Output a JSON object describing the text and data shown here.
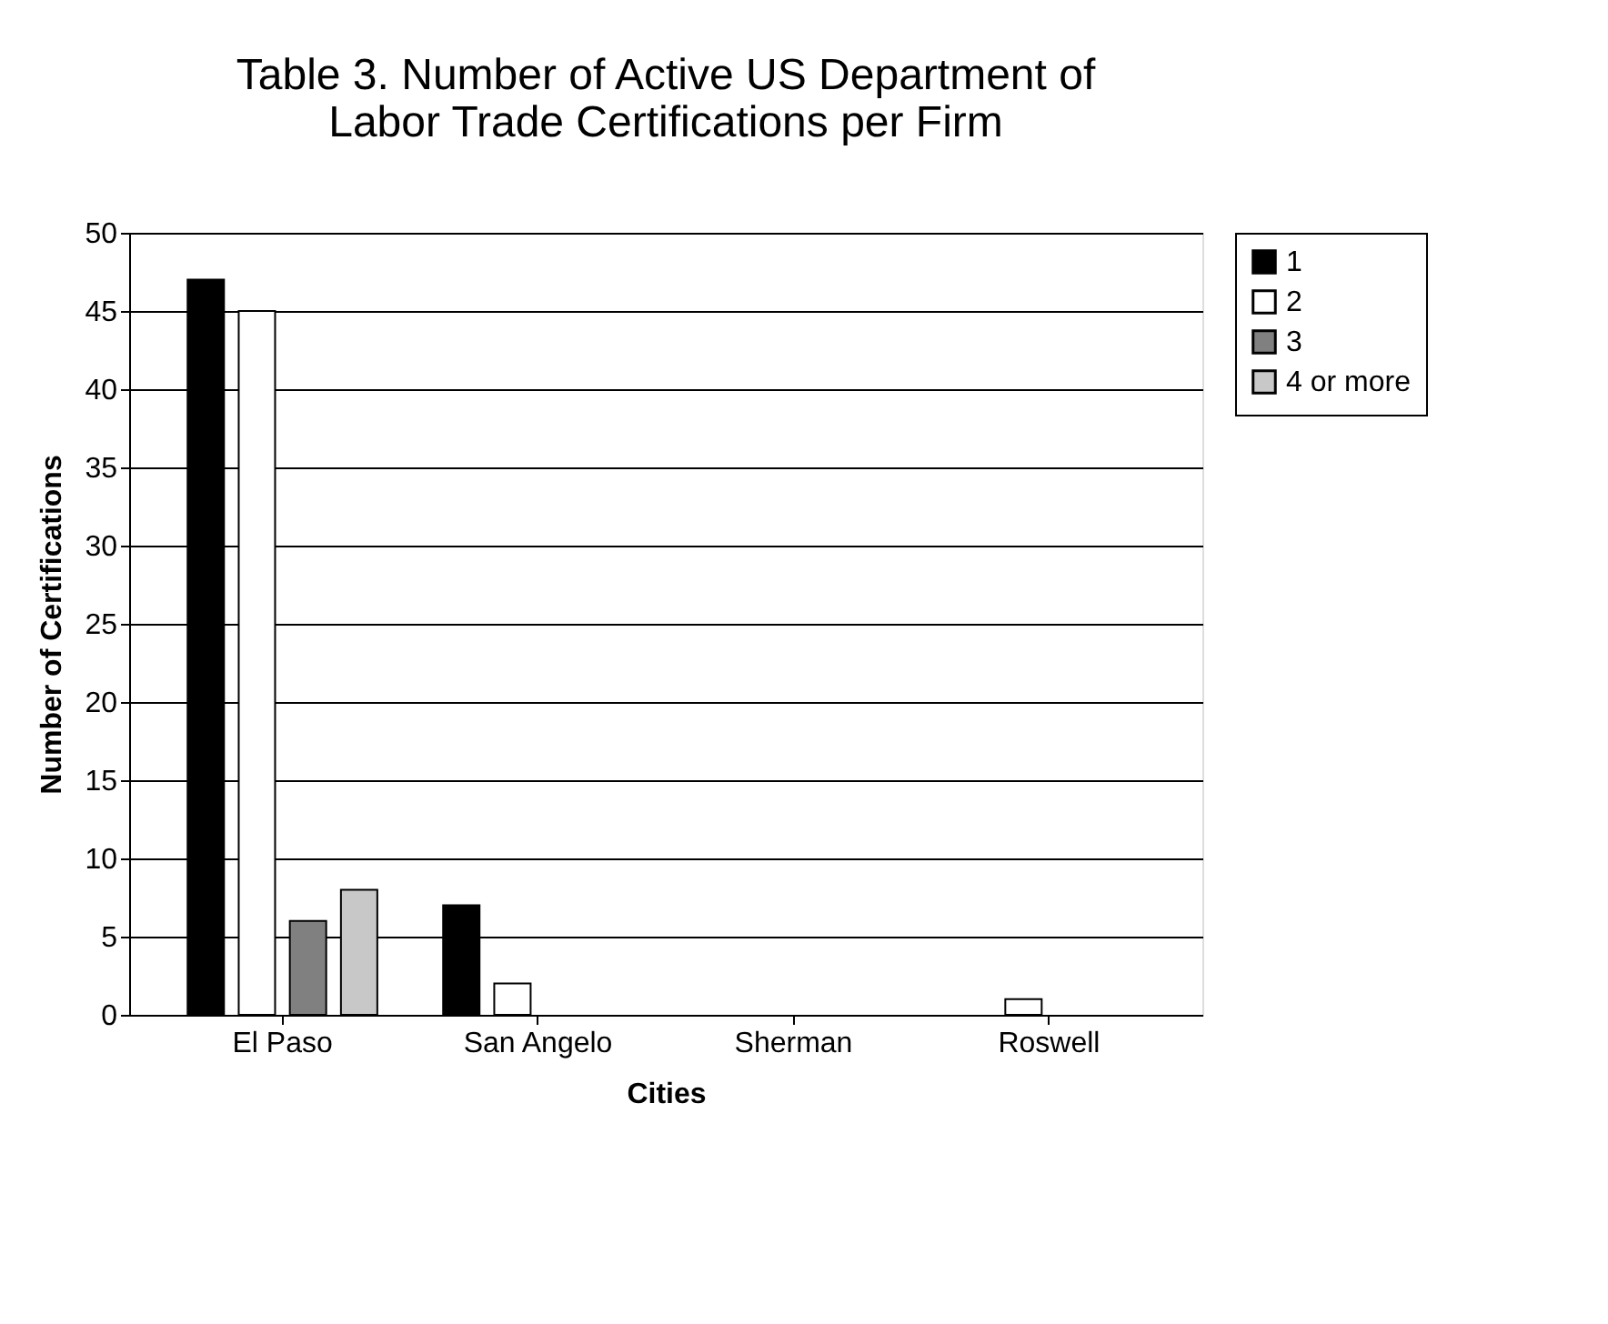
{
  "chart_data": {
    "type": "bar",
    "title": [
      "Table 3. Number of Active US Department of",
      "Labor Trade Certifications per Firm"
    ],
    "xlabel": "Cities",
    "ylabel": "Number of Certifications",
    "categories": [
      "El Paso",
      "San Angelo",
      "Sherman",
      "Roswell"
    ],
    "series": [
      {
        "name": "1",
        "color": "#000000",
        "values": [
          47,
          7,
          0,
          0
        ]
      },
      {
        "name": "2",
        "color": "#ffffff",
        "values": [
          45,
          2,
          0,
          1
        ]
      },
      {
        "name": "3",
        "color": "#808080",
        "values": [
          6,
          0,
          0,
          0
        ]
      },
      {
        "name": "4 or more",
        "color": "#c8c8c8",
        "values": [
          8,
          0,
          0,
          0
        ]
      }
    ],
    "ylim": [
      0,
      50
    ],
    "yticks": [
      0,
      5,
      10,
      15,
      20,
      25,
      30,
      35,
      40,
      45,
      50
    ],
    "grid": "y",
    "legend": "right"
  }
}
